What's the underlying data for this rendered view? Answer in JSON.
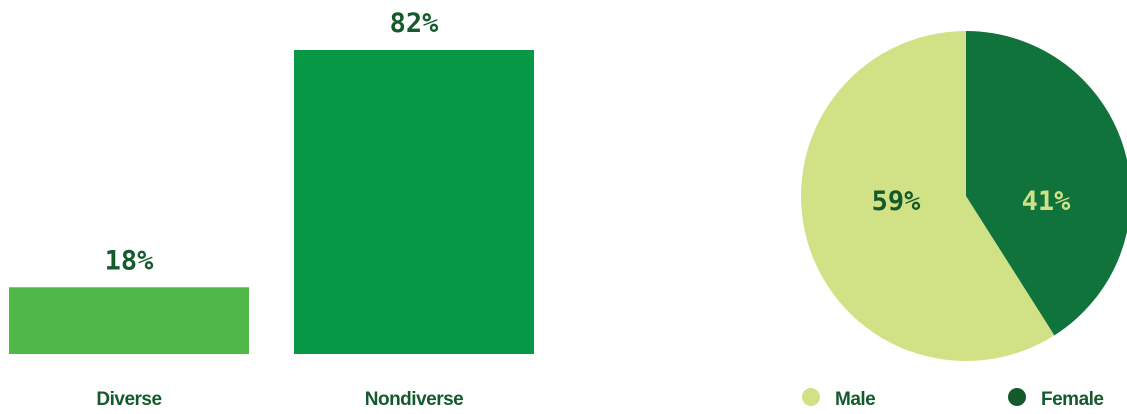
{
  "colors": {
    "text_dark": "#145a2c",
    "pie_label_light": "#cfe086"
  },
  "chart_data": [
    {
      "type": "bar",
      "categories": [
        "Diverse",
        "Nondiverse"
      ],
      "values": [
        18,
        82
      ],
      "value_labels": [
        "18%",
        "82%"
      ],
      "colors": [
        "#50b848",
        "#079845"
      ],
      "ylim": [
        0,
        82
      ]
    },
    {
      "type": "pie",
      "categories": [
        "Male",
        "Female"
      ],
      "values": [
        59,
        41
      ],
      "value_labels": [
        "59%",
        "41%"
      ],
      "colors": [
        "#d1e286",
        "#11733c"
      ],
      "legend_colors": [
        "#d1e286",
        "#145a2c"
      ],
      "legend": "bottom"
    }
  ]
}
